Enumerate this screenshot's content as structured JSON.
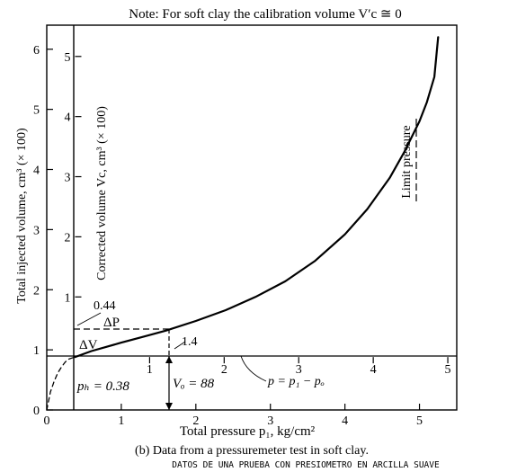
{
  "chart_data": {
    "type": "line",
    "title": "Note: For soft clay the calibration volume V′c ≅ 0",
    "xlabel": "Total pressure p₁, kg/cm²",
    "ylabel_outer": "Total injected volume, cm³ (× 100)",
    "ylabel_inner": "Corrected volume Vc, cm³ (× 100)",
    "x_axis": {
      "min": 0,
      "max": 5.5,
      "ticks": [
        "0",
        "1",
        "2",
        "3",
        "4",
        "5"
      ]
    },
    "y_outer_axis": {
      "min": 0,
      "max": 6.4,
      "ticks": [
        "0",
        "1",
        "2",
        "3",
        "4",
        "5",
        "6"
      ]
    },
    "y_inner_axis": {
      "ticks": [
        "1",
        "2",
        "3",
        "4",
        "5"
      ]
    },
    "x_inner_ticks": [
      "1",
      "2",
      "3",
      "4",
      "5"
    ],
    "series": [
      {
        "x": [
          0.0,
          0.05,
          0.1,
          0.15,
          0.2,
          0.25,
          0.3,
          0.38
        ],
        "y": [
          0.0,
          0.3,
          0.48,
          0.62,
          0.72,
          0.8,
          0.85,
          0.88
        ],
        "style": "dashed"
      },
      {
        "x": [
          0.38,
          0.6,
          0.8,
          1.0,
          1.3,
          1.6,
          2.0,
          2.4,
          2.8,
          3.2,
          3.6,
          4.0,
          4.3,
          4.6,
          4.8,
          5.0,
          5.1,
          5.2,
          5.25
        ],
        "y": [
          0.88,
          0.98,
          1.05,
          1.12,
          1.22,
          1.32,
          1.48,
          1.66,
          1.88,
          2.14,
          2.48,
          2.92,
          3.34,
          3.86,
          4.3,
          4.8,
          5.12,
          5.54,
          6.2
        ],
        "style": "solid"
      }
    ],
    "annotations": {
      "v044": "0.44",
      "dp": "ΔP",
      "dv": "ΔV",
      "p14": "1.4",
      "ph": "pₕ = 0.38",
      "vo": "Vₒ = 88",
      "eq": "p = p₁ − pₒ",
      "limit": "Limit pressure"
    },
    "grid": false
  },
  "caption": "(b)  Data from a pressuremeter test in soft clay.",
  "handwritten_note": "DATOS DE UNA PRUEBA CON PRESIOMETRO EN ARCILLA SUAVE"
}
